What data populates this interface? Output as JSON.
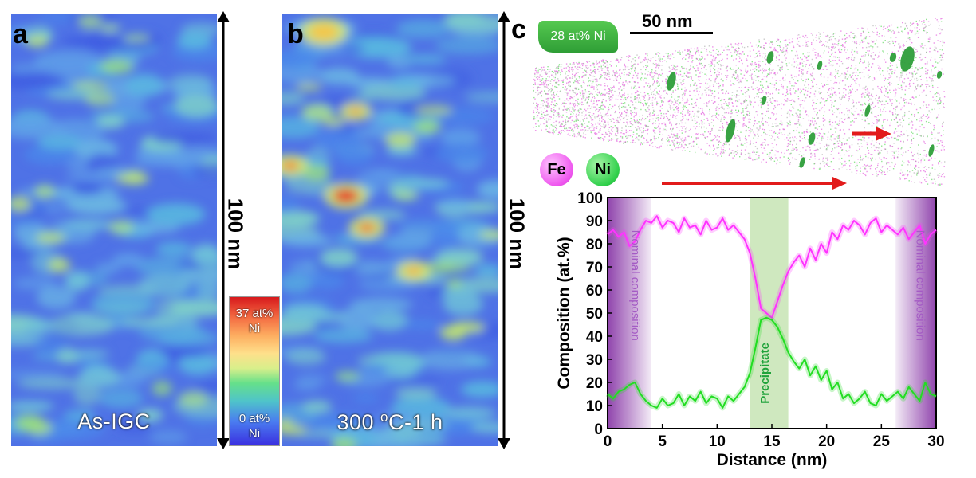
{
  "panels": {
    "a": {
      "letter": "a",
      "caption": "As-IGC",
      "scale_label": "100 nm"
    },
    "b": {
      "letter": "b",
      "caption_main": "300 ",
      "caption_sup": "o",
      "caption_tail": "C-1 h",
      "scale_label": "100 nm"
    },
    "c": {
      "letter": "c",
      "scale_label": "50 nm",
      "iso_label": "28 at% Ni",
      "fe_label": "Fe",
      "ni_label": "Ni"
    }
  },
  "colorbar": {
    "max_label": "37 at%",
    "max_unit": "Ni",
    "min_label": "0 at%",
    "min_unit": "Ni"
  },
  "colors": {
    "fe": "#ff33ff",
    "ni": "#22dd22",
    "arrow": "#e21b1b",
    "nominal_band": "#8a3aa8",
    "precipitate_band": "#cfe8bf"
  },
  "chart_data": {
    "type": "line",
    "xlabel": "Distance (nm)",
    "ylabel": "Composition (at.%)",
    "xlim": [
      0,
      30
    ],
    "ylim": [
      0,
      100
    ],
    "xticks": [
      0,
      5,
      10,
      15,
      20,
      25,
      30
    ],
    "yticks": [
      0,
      10,
      20,
      30,
      40,
      50,
      60,
      70,
      80,
      90,
      100
    ],
    "annotations": {
      "nominal_left": "Nominal composition",
      "nominal_right": "Nominal composition",
      "precipitate": "Precipitate"
    },
    "bands": {
      "nominal_left": [
        0,
        4
      ],
      "precipitate": [
        13,
        16.5
      ],
      "nominal_right": [
        26.3,
        30
      ]
    },
    "series": [
      {
        "color": "#ff33ff",
        "x": [
          0,
          0.5,
          1,
          1.5,
          2,
          2.5,
          3,
          3.5,
          4,
          4.5,
          5,
          5.5,
          6,
          6.5,
          7,
          7.5,
          8,
          8.5,
          9,
          9.5,
          10,
          10.5,
          11,
          11.5,
          12,
          12.5,
          13,
          13.5,
          14,
          14.5,
          15,
          15.5,
          16,
          16.5,
          17,
          17.5,
          18,
          18.5,
          19,
          19.5,
          20,
          20.5,
          21,
          21.5,
          22,
          22.5,
          23,
          23.5,
          24,
          24.5,
          25,
          25.5,
          26,
          26.5,
          27,
          27.5,
          28,
          28.5,
          29,
          29.5,
          30
        ],
        "values": [
          84,
          86,
          83,
          85,
          79,
          81,
          86,
          90,
          89,
          92,
          87,
          90,
          89,
          85,
          91,
          87,
          88,
          84,
          90,
          86,
          87,
          91,
          86,
          88,
          85,
          82,
          76,
          65,
          52,
          50,
          48,
          55,
          62,
          68,
          72,
          75,
          70,
          78,
          73,
          80,
          76,
          85,
          82,
          88,
          86,
          90,
          88,
          84,
          89,
          91,
          85,
          88,
          86,
          84,
          87,
          82,
          85,
          88,
          80,
          84,
          86
        ]
      },
      {
        "color": "#22dd22",
        "x": [
          0,
          0.5,
          1,
          1.5,
          2,
          2.5,
          3,
          3.5,
          4,
          4.5,
          5,
          5.5,
          6,
          6.5,
          7,
          7.5,
          8,
          8.5,
          9,
          9.5,
          10,
          10.5,
          11,
          11.5,
          12,
          12.5,
          13,
          13.5,
          14,
          14.5,
          15,
          15.5,
          16,
          16.5,
          17,
          17.5,
          18,
          18.5,
          19,
          19.5,
          20,
          20.5,
          21,
          21.5,
          22,
          22.5,
          23,
          23.5,
          24,
          24.5,
          25,
          25.5,
          26,
          26.5,
          27,
          27.5,
          28,
          28.5,
          29,
          29.5,
          30
        ],
        "values": [
          15,
          13,
          16,
          17,
          19,
          20,
          15,
          12,
          10,
          9,
          13,
          10,
          11,
          15,
          10,
          14,
          12,
          16,
          11,
          14,
          13,
          9,
          14,
          12,
          15,
          18,
          24,
          35,
          47,
          48,
          47,
          44,
          39,
          33,
          29,
          26,
          30,
          23,
          27,
          21,
          25,
          17,
          20,
          13,
          15,
          11,
          13,
          16,
          11,
          10,
          15,
          12,
          14,
          16,
          13,
          18,
          15,
          12,
          20,
          15,
          14
        ]
      }
    ]
  }
}
